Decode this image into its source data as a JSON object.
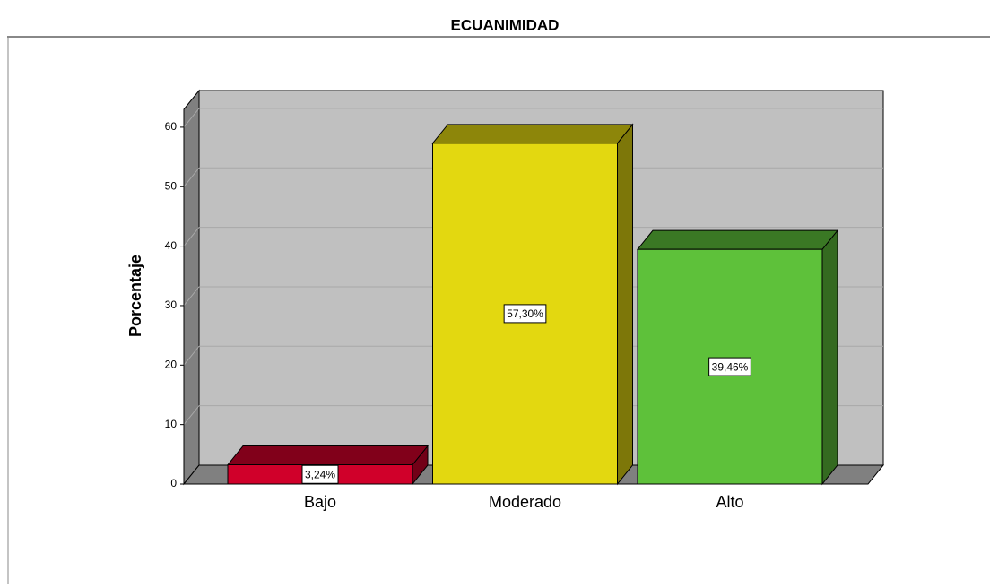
{
  "chart_data": {
    "type": "bar3d",
    "title": "ECUANIMIDAD",
    "y_label": "Porcentaje",
    "categories": [
      "Bajo",
      "Moderado",
      "Alto"
    ],
    "values": [
      3.24,
      57.3,
      39.46
    ],
    "value_labels": [
      "3,24%",
      "57,30%",
      "39,46%"
    ],
    "colors": [
      "#d0002a",
      "#e3d810",
      "#5ec13a"
    ],
    "ylim": [
      0,
      63
    ],
    "yticks": [
      0,
      10,
      20,
      30,
      40,
      50,
      60
    ],
    "grid": true
  }
}
